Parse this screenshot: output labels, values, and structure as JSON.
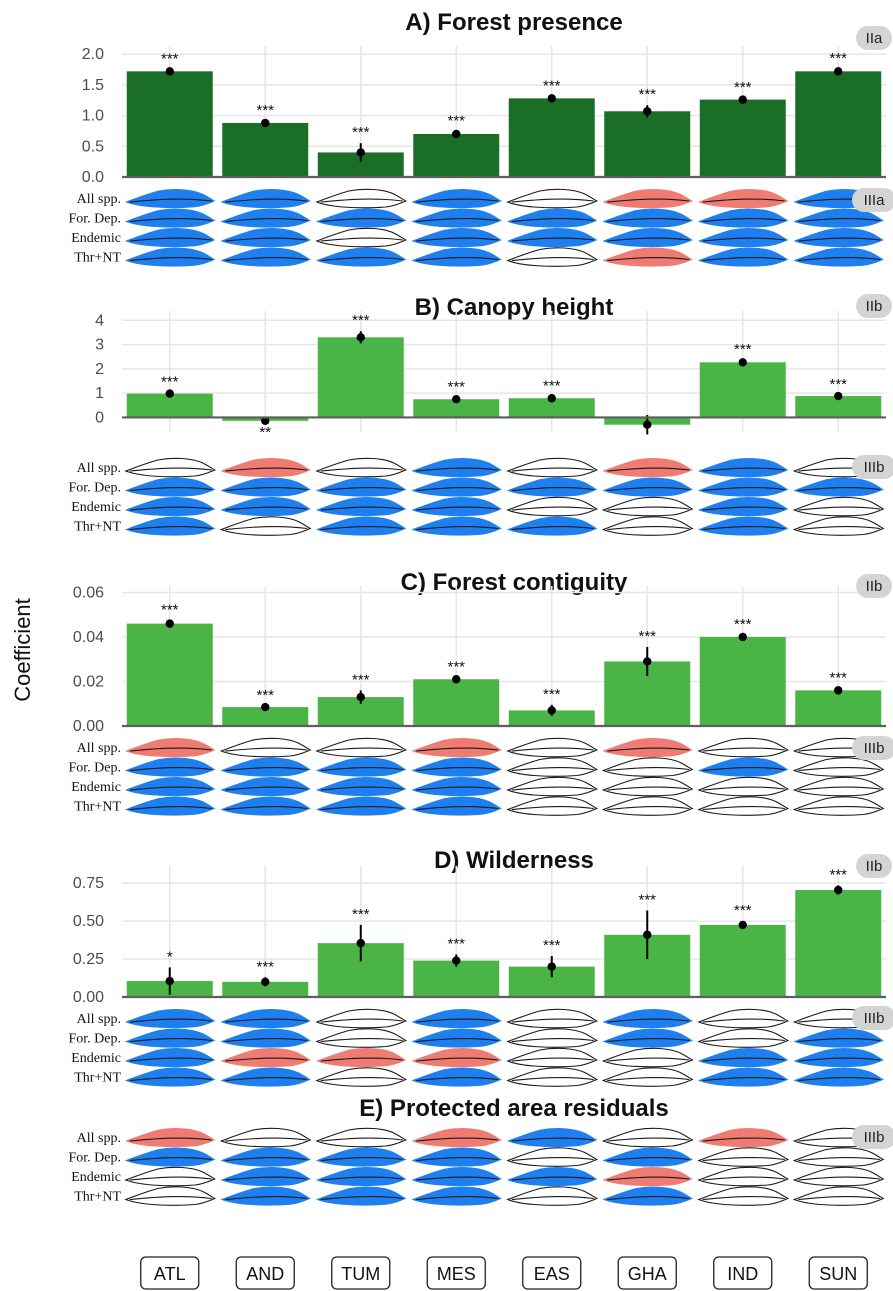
{
  "colors": {
    "dark_green": "#1a6e25",
    "green": "#4bb446",
    "blue": "#1e7ff0",
    "red": "#f07b72",
    "outline": "#1a1a1a",
    "badge": "#d4d4d4",
    "grid": "#e6e6e6"
  },
  "categories": [
    "ATL",
    "AND",
    "TUM",
    "MES",
    "EAS",
    "GHA",
    "IND",
    "SUN"
  ],
  "y_axis_label": "Coefficient",
  "row_labels": [
    "All spp.",
    "For. Dep.",
    "Endemic",
    "Thr+NT"
  ],
  "icon_name": "feather-icon",
  "chart_data": [
    {
      "type": "bar",
      "title": "A) Forest presence",
      "badge_chart": "IIa",
      "badge_icons": "IIIa",
      "fill": "dark",
      "categories": [
        "ATL",
        "AND",
        "TUM",
        "MES",
        "EAS",
        "GHA",
        "IND",
        "SUN"
      ],
      "values": [
        1.72,
        0.88,
        0.4,
        0.7,
        1.28,
        1.07,
        1.26,
        1.72
      ],
      "errors": [
        0.03,
        0.03,
        0.15,
        0.04,
        0.03,
        0.1,
        0.03,
        0.04
      ],
      "significance": [
        "***",
        "***",
        "***",
        "***",
        "***",
        "***",
        "***",
        "***"
      ],
      "ylim": [
        0,
        2.1
      ],
      "yticks": [
        0,
        0.5,
        1.0,
        1.5,
        2.0
      ],
      "ytick_labels": [
        "0.0",
        "0.5",
        "1.0",
        "1.5",
        "2.0"
      ],
      "icons": [
        [
          "blue",
          "blue",
          "blue",
          "blue"
        ],
        [
          "blue",
          "blue",
          "blue",
          "blue"
        ],
        [
          "white",
          "blue",
          "white",
          "blue"
        ],
        [
          "blue",
          "blue",
          "blue",
          "blue"
        ],
        [
          "white",
          "blue",
          "blue",
          "white"
        ],
        [
          "red",
          "blue",
          "blue",
          "red"
        ],
        [
          "red",
          "blue",
          "blue",
          "blue"
        ],
        [
          "blue",
          "blue",
          "blue",
          "blue"
        ]
      ]
    },
    {
      "type": "bar",
      "title": "B) Canopy height",
      "badge_chart": "IIb",
      "badge_icons": "IIIb",
      "fill": "light",
      "categories": [
        "ATL",
        "AND",
        "TUM",
        "MES",
        "EAS",
        "GHA",
        "IND",
        "SUN"
      ],
      "values": [
        0.98,
        -0.14,
        3.3,
        0.75,
        0.79,
        -0.3,
        2.27,
        0.88
      ],
      "errors": [
        0.05,
        0.05,
        0.25,
        0.07,
        0.07,
        0.4,
        0.1,
        0.05
      ],
      "significance": [
        "***",
        "**",
        "***",
        "***",
        "***",
        "",
        "***",
        "***"
      ],
      "ylim": [
        -0.6,
        4.3
      ],
      "yticks": [
        0,
        1,
        2,
        3,
        4
      ],
      "ytick_labels": [
        "0",
        "1",
        "2",
        "3",
        "4"
      ],
      "icons": [
        [
          "white",
          "blue",
          "blue",
          "blue"
        ],
        [
          "red",
          "blue",
          "blue",
          "white"
        ],
        [
          "white",
          "blue",
          "blue",
          "blue"
        ],
        [
          "blue",
          "blue",
          "blue",
          "blue"
        ],
        [
          "white",
          "blue",
          "white",
          "blue"
        ],
        [
          "red",
          "blue",
          "white",
          "white"
        ],
        [
          "blue",
          "blue",
          "blue",
          "blue"
        ],
        [
          "white",
          "blue",
          "white",
          "white"
        ]
      ]
    },
    {
      "type": "bar",
      "title": "C) Forest contiguity",
      "badge_chart": "IIb",
      "badge_icons": "IIIb",
      "fill": "light",
      "categories": [
        "ATL",
        "AND",
        "TUM",
        "MES",
        "EAS",
        "GHA",
        "IND",
        "SUN"
      ],
      "values": [
        0.046,
        0.0085,
        0.013,
        0.021,
        0.007,
        0.029,
        0.04,
        0.016
      ],
      "errors": [
        0.0015,
        0.0005,
        0.003,
        0.0008,
        0.0025,
        0.0065,
        0.0008,
        0.0008
      ],
      "significance": [
        "***",
        "***",
        "***",
        "***",
        "***",
        "***",
        "***",
        "***"
      ],
      "ylim": [
        0,
        0.062
      ],
      "yticks": [
        0,
        0.02,
        0.04,
        0.06
      ],
      "ytick_labels": [
        "0.00",
        "0.02",
        "0.04",
        "0.06"
      ],
      "icons": [
        [
          "red",
          "blue",
          "blue",
          "blue"
        ],
        [
          "white",
          "blue",
          "blue",
          "blue"
        ],
        [
          "white",
          "blue",
          "blue",
          "blue"
        ],
        [
          "red",
          "blue",
          "blue",
          "blue"
        ],
        [
          "white",
          "white",
          "white",
          "white"
        ],
        [
          "red",
          "white",
          "white",
          "white"
        ],
        [
          "white",
          "blue",
          "white",
          "white"
        ],
        [
          "white",
          "white",
          "white",
          "white"
        ]
      ]
    },
    {
      "type": "bar",
      "title": "D) Wilderness",
      "badge_chart": "IIb",
      "badge_icons": "IIIb",
      "fill": "light",
      "categories": [
        "ATL",
        "AND",
        "TUM",
        "MES",
        "EAS",
        "GHA",
        "IND",
        "SUN"
      ],
      "values": [
        0.105,
        0.1,
        0.355,
        0.24,
        0.2,
        0.41,
        0.475,
        0.705
      ],
      "errors": [
        0.09,
        0.03,
        0.12,
        0.04,
        0.07,
        0.16,
        0.025,
        0.03
      ],
      "significance": [
        "*",
        "***",
        "***",
        "***",
        "***",
        "***",
        "***",
        "***"
      ],
      "ylim": [
        0,
        0.85
      ],
      "yticks": [
        0,
        0.25,
        0.5,
        0.75
      ],
      "ytick_labels": [
        "0.00",
        "0.25",
        "0.50",
        "0.75"
      ],
      "icons": [
        [
          "blue",
          "blue",
          "blue",
          "blue"
        ],
        [
          "blue",
          "blue",
          "red",
          "blue"
        ],
        [
          "white",
          "white",
          "red",
          "white"
        ],
        [
          "blue",
          "blue",
          "red",
          "blue"
        ],
        [
          "white",
          "white",
          "white",
          "white"
        ],
        [
          "blue",
          "blue",
          "white",
          "white"
        ],
        [
          "white",
          "white",
          "blue",
          "blue"
        ],
        [
          "white",
          "blue",
          "blue",
          "blue"
        ]
      ]
    },
    {
      "type": "table",
      "title": "E) Protected area residuals",
      "badge_icons": "IIIb",
      "categories": [
        "ATL",
        "AND",
        "TUM",
        "MES",
        "EAS",
        "GHA",
        "IND",
        "SUN"
      ],
      "icons": [
        [
          "red",
          "blue",
          "white",
          "white"
        ],
        [
          "white",
          "blue",
          "blue",
          "blue"
        ],
        [
          "white",
          "blue",
          "blue",
          "blue"
        ],
        [
          "red",
          "blue",
          "blue",
          "blue"
        ],
        [
          "blue",
          "white",
          "blue",
          "white"
        ],
        [
          "white",
          "blue",
          "red",
          "blue"
        ],
        [
          "red",
          "white",
          "white",
          "white"
        ],
        [
          "white",
          "white",
          "white",
          "white"
        ]
      ]
    }
  ]
}
